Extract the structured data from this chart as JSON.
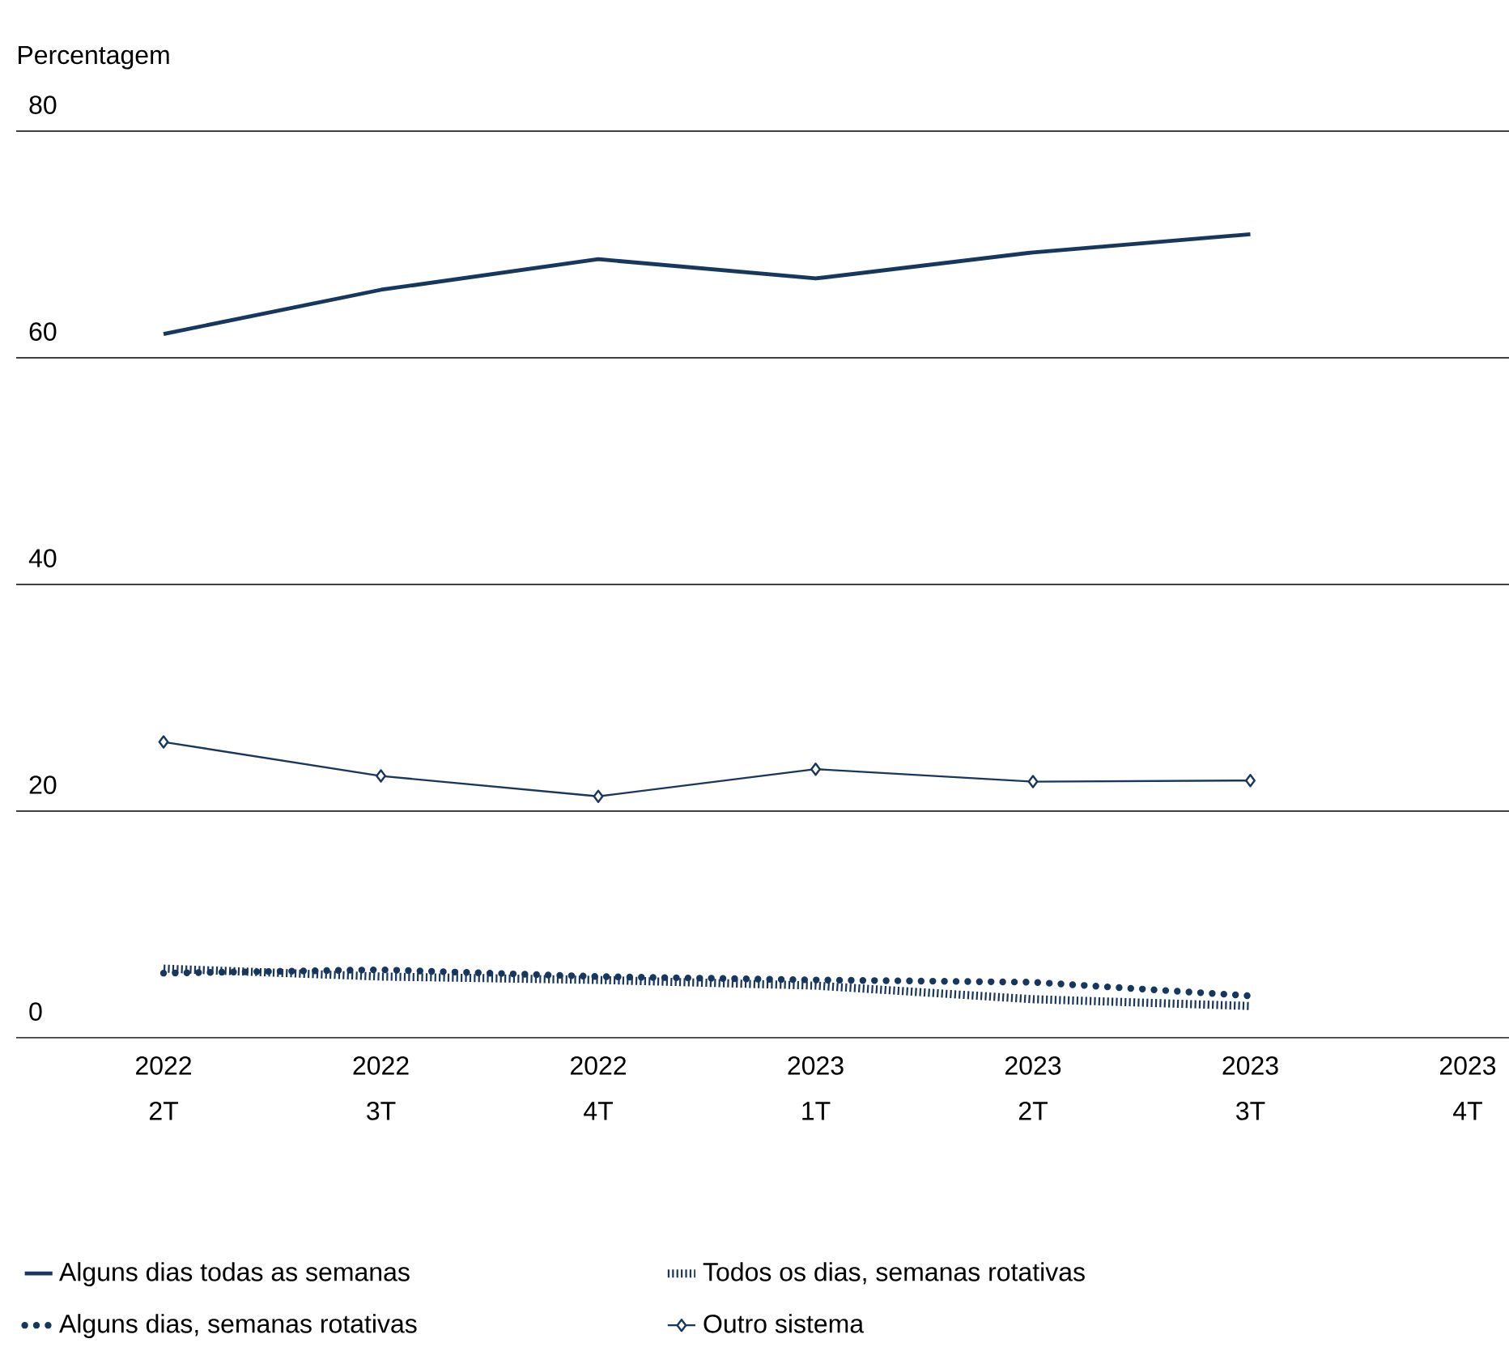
{
  "chart_data": {
    "type": "line",
    "ylabel": "Percentagem",
    "categories": [
      "2022 2T",
      "2022 3T",
      "2022 4T",
      "2023 1T",
      "2023 2T",
      "2023 3T",
      "2023 4T"
    ],
    "ylim": [
      0,
      80
    ],
    "yticks": [
      0,
      20,
      40,
      60,
      80
    ],
    "grid": "y",
    "legend": "bottom",
    "series": [
      {
        "name": "Alguns dias todas as semanas",
        "color": "#17375e",
        "line_style": "solid",
        "values": [
          62.1,
          66.0,
          68.7,
          67.0,
          69.3,
          70.9,
          null
        ]
      },
      {
        "name": "Alguns dias, semanas rotativas",
        "color": "#17375e",
        "line_style": "dotted",
        "values": [
          5.7,
          6.0,
          5.4,
          5.1,
          4.9,
          3.7,
          null
        ]
      },
      {
        "name": "Todos os dias, semanas rotativas",
        "color": "#17375e",
        "line_style": "dashed",
        "values": [
          6.1,
          5.4,
          5.1,
          4.6,
          3.4,
          2.8,
          null
        ]
      },
      {
        "name": "Outro sistema",
        "color": "#17375e",
        "line_style": "solid",
        "marker": "diamond",
        "values": [
          26.1,
          23.1,
          21.3,
          23.7,
          22.6,
          22.7,
          null
        ]
      }
    ]
  }
}
